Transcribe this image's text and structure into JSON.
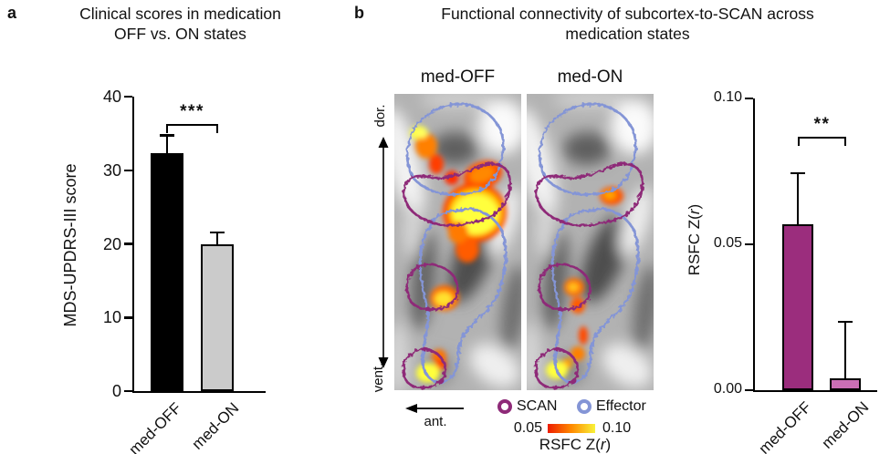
{
  "panels": {
    "a": {
      "label": "a",
      "title_line1": "Clinical scores in medication",
      "title_line2": "OFF vs. ON states"
    },
    "b": {
      "label": "b",
      "title_line1": "Functional connectivity of subcortex-to-SCAN across",
      "title_line2": "medication states",
      "maps": {
        "left_title": "med-OFF",
        "right_title": "med-ON",
        "dorsal": "dor.",
        "ventral": "vent.",
        "anterior": "ant."
      },
      "legend": {
        "scan_label": "SCAN",
        "scan_color": "#8e2a78",
        "effector_label": "Effector",
        "effector_color": "#8495d6"
      },
      "colorbar": {
        "min": "0.05",
        "max": "0.10",
        "gradient": [
          "#ed1c00",
          "#ff8a00",
          "#f8f23a"
        ]
      },
      "rsfc_label": {
        "prefix": "RSFC Z(",
        "italic": "r",
        "suffix": ")"
      }
    }
  },
  "chart_data": [
    {
      "id": "clinical-scores",
      "type": "bar",
      "title": "Clinical scores in medication OFF vs. ON states",
      "ylabel": "MDS-UPDRS-III score",
      "categories": [
        "med-OFF",
        "med-ON"
      ],
      "values": [
        32.3,
        19.9
      ],
      "error_upper": [
        34.6,
        21.4
      ],
      "bar_colors": [
        "#000000",
        "#cbcbcb"
      ],
      "ylim": [
        0,
        40
      ],
      "yticks": [
        "0",
        "10",
        "20",
        "30",
        "40"
      ],
      "significance": "***",
      "grid": false,
      "legend_position": "none"
    },
    {
      "id": "rsfc-subcortex-to-scan",
      "type": "bar",
      "title": "Functional connectivity of subcortex-to-SCAN across medication states",
      "ylabel": "RSFC Z(r)",
      "categories": [
        "med-OFF",
        "med-ON"
      ],
      "values": [
        0.057,
        0.004
      ],
      "error_upper": [
        0.074,
        0.023
      ],
      "bar_colors": [
        "#9b2d7d",
        "#cb6fb5"
      ],
      "ylim": [
        0,
        0.1
      ],
      "yticks": [
        "0.00",
        "0.05",
        "0.10"
      ],
      "significance": "**",
      "grid": false,
      "legend_position": "none"
    }
  ]
}
